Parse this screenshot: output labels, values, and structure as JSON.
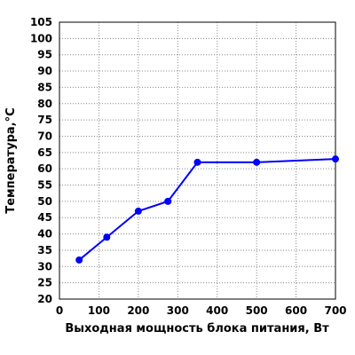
{
  "chart_data": {
    "type": "line",
    "x_label": "Выходная мощность блока питания, Вт",
    "y_label": "Температура,°C",
    "x": [
      50,
      120,
      200,
      275,
      350,
      500,
      700
    ],
    "series": [
      {
        "name": "Температура",
        "color": "#0000ff",
        "values": [
          32,
          39,
          47,
          50,
          62,
          62,
          63
        ]
      }
    ],
    "xlim": [
      0,
      700
    ],
    "xticks": [
      0,
      100,
      200,
      300,
      400,
      500,
      600,
      700
    ],
    "ylim": [
      20,
      105
    ],
    "yticks": [
      20,
      25,
      30,
      35,
      40,
      45,
      50,
      55,
      60,
      65,
      70,
      75,
      80,
      85,
      90,
      95,
      100,
      105
    ],
    "grid": true
  }
}
